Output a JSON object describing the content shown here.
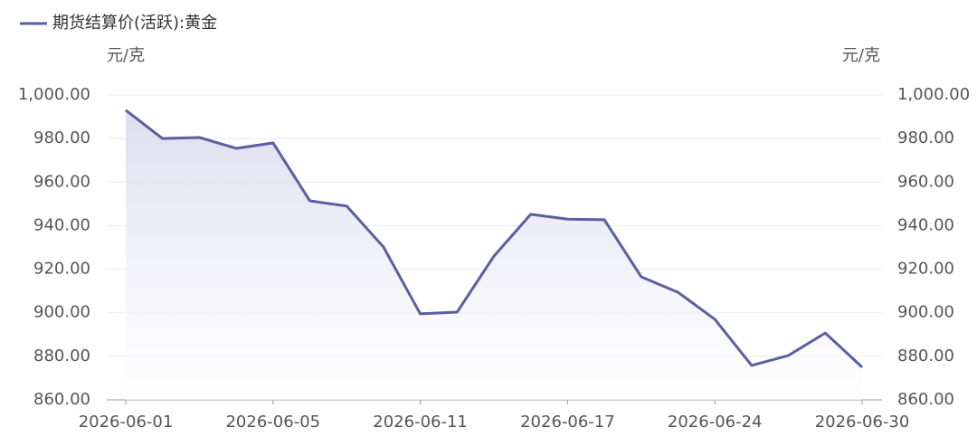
{
  "chart_data": {
    "type": "line",
    "legend": "top-left",
    "y_label": "元/克",
    "y2_label": "元/克",
    "categories": [
      "2026-06-01",
      null,
      null,
      null,
      "2026-06-05",
      null,
      null,
      null,
      "2026-06-11",
      null,
      null,
      null,
      "2026-06-17",
      null,
      null,
      null,
      "2026-06-24",
      null,
      null,
      null,
      "2026-06-30"
    ],
    "series": [
      {
        "name": "期货结算价(活跃):黄金",
        "color": "#5a5fa0",
        "values": [
          993,
          980,
          980.5,
          975.5,
          978,
          951.4,
          949,
          930.2,
          899.5,
          900.3,
          926,
          945.2,
          943,
          942.7,
          916.5,
          909.4,
          897,
          875.8,
          880.4,
          890.7,
          875
        ]
      }
    ],
    "ylim": [
      860,
      1000
    ],
    "yticks": [
      {
        "value": 860,
        "label": "860.00"
      },
      {
        "value": 880,
        "label": "880.00"
      },
      {
        "value": 900,
        "label": "900.00"
      },
      {
        "value": 920,
        "label": "920.00"
      },
      {
        "value": 940,
        "label": "940.00"
      },
      {
        "value": 960,
        "label": "960.00"
      },
      {
        "value": 980,
        "label": "980.00"
      },
      {
        "value": 1000,
        "label": "1,000.00"
      }
    ],
    "y2lim": [
      860,
      1000
    ],
    "y2ticks": [
      {
        "value": 860,
        "label": "860.00"
      },
      {
        "value": 880,
        "label": "880.00"
      },
      {
        "value": 900,
        "label": "900.00"
      },
      {
        "value": 920,
        "label": "920.00"
      },
      {
        "value": 940,
        "label": "940.00"
      },
      {
        "value": 960,
        "label": "960.00"
      },
      {
        "value": 980,
        "label": "980.00"
      },
      {
        "value": 1000,
        "label": "1,000.00"
      }
    ],
    "grid": true
  }
}
